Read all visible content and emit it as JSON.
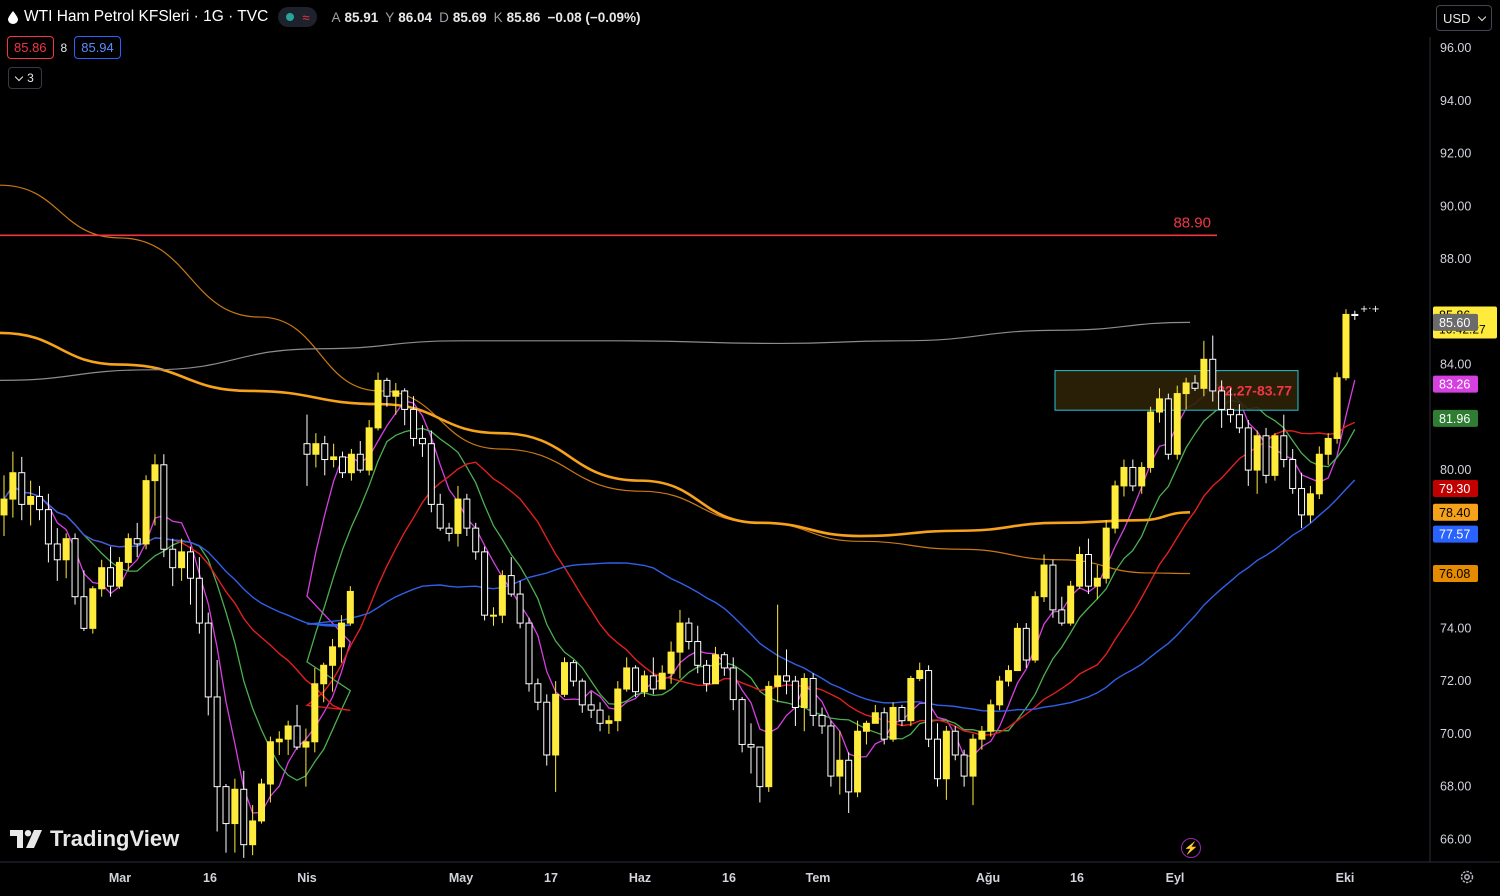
{
  "header": {
    "title": "WTI Ham Petrol KFSleri · 1G · TVC",
    "ohlc": [
      {
        "k": "A",
        "v": "85.91"
      },
      {
        "k": "Y",
        "v": "86.04"
      },
      {
        "k": "D",
        "v": "85.69"
      },
      {
        "k": "K",
        "v": "85.86"
      }
    ],
    "change": "−0.08 (−0.09%)",
    "bid": "85.86",
    "spread": "8",
    "ask": "85.94",
    "indicators_collapsed_count": "3"
  },
  "currency_selector": "USD",
  "branding": "TradingView",
  "colors": {
    "bull": "#ffeb3b",
    "bear": "#ffffff",
    "resistance": "#f23645",
    "ma_gray": "#8c8c8c",
    "ma_magenta": "#d63fe0",
    "ma_green": "#4caf50",
    "ma_red": "#e0201f",
    "ma_orange_thick": "#f7a21b",
    "ma_blue": "#3060e8",
    "ma_orange_thin": "#c87814",
    "zone_border": "#26c6da",
    "zone_fill": "#2e2208"
  },
  "chart_data": {
    "type": "candlestick",
    "yaxis": {
      "min": 65.2,
      "max": 96.5,
      "ticks": [
        "96.00",
        "94.00",
        "92.00",
        "90.00",
        "88.00",
        "84.00",
        "80.00",
        "74.00",
        "72.00",
        "70.00",
        "68.00",
        "66.00"
      ]
    },
    "xaxis_labels": [
      "Mar",
      "16",
      "Nis",
      "May",
      "17",
      "Haz",
      "16",
      "Tem",
      "Ağu",
      "16",
      "Eyl",
      "Eki"
    ],
    "resistance": {
      "value": 88.9,
      "label": "88.90"
    },
    "zone": {
      "low": 82.27,
      "high": 83.77,
      "label": "82.27-83.77"
    },
    "price_badges": [
      {
        "value": 85.86,
        "label": "85.86",
        "sub": "16:42:27",
        "color": "#ffeb3b",
        "text_color": "#000000"
      },
      {
        "value": 85.6,
        "label": "85.60",
        "color": "#6b6b6b",
        "text_color": "#ffffff"
      },
      {
        "value": 83.26,
        "label": "83.26",
        "color": "#d63fe0",
        "text_color": "#ffffff"
      },
      {
        "value": 81.96,
        "label": "81.96",
        "color": "#2e7d32",
        "text_color": "#ffffff"
      },
      {
        "value": 79.3,
        "label": "79.30",
        "color": "#c20000",
        "text_color": "#ffffff"
      },
      {
        "value": 78.4,
        "label": "78.40",
        "color": "#f7a21b",
        "text_color": "#000000"
      },
      {
        "value": 77.57,
        "label": "77.57",
        "color": "#2962ff",
        "text_color": "#ffffff"
      },
      {
        "value": 76.08,
        "label": "76.08",
        "color": "#e68a00",
        "text_color": "#000000"
      }
    ],
    "candles_ohlc": [
      [
        78.3,
        79.8,
        77.5,
        78.9
      ],
      [
        78.9,
        80.7,
        78.2,
        79.9
      ],
      [
        79.9,
        80.5,
        78.1,
        78.7
      ],
      [
        78.7,
        79.6,
        77.9,
        79.0
      ],
      [
        79.0,
        79.4,
        78.1,
        78.5
      ],
      [
        78.5,
        79.1,
        76.5,
        77.2
      ],
      [
        77.2,
        77.8,
        75.8,
        76.6
      ],
      [
        76.6,
        77.6,
        75.9,
        77.4
      ],
      [
        77.4,
        77.6,
        74.9,
        75.2
      ],
      [
        75.2,
        76.2,
        73.9,
        74.0
      ],
      [
        74.0,
        75.6,
        73.8,
        75.5
      ],
      [
        75.5,
        76.6,
        75.2,
        76.3
      ],
      [
        76.3,
        77.1,
        75.2,
        75.6
      ],
      [
        75.6,
        76.7,
        75.5,
        76.5
      ],
      [
        76.5,
        77.6,
        76.2,
        77.4
      ],
      [
        77.4,
        78.0,
        76.7,
        77.2
      ],
      [
        77.2,
        79.8,
        77.0,
        79.6
      ],
      [
        79.6,
        80.6,
        77.9,
        80.2
      ],
      [
        80.2,
        80.6,
        76.7,
        77.0
      ],
      [
        77.0,
        77.4,
        75.6,
        76.3
      ],
      [
        76.3,
        77.4,
        75.8,
        76.9
      ],
      [
        76.9,
        77.1,
        74.9,
        75.9
      ],
      [
        75.9,
        76.7,
        73.8,
        74.2
      ],
      [
        74.2,
        74.6,
        70.7,
        71.4
      ],
      [
        71.4,
        72.8,
        66.3,
        68.0
      ],
      [
        68.0,
        68.1,
        65.5,
        66.6
      ],
      [
        66.6,
        68.3,
        65.5,
        67.9
      ],
      [
        67.9,
        68.6,
        65.3,
        65.8
      ],
      [
        65.8,
        67.3,
        65.4,
        66.7
      ],
      [
        66.7,
        68.3,
        66.6,
        68.1
      ],
      [
        68.1,
        69.9,
        67.4,
        69.7
      ],
      [
        69.7,
        70.1,
        69.2,
        69.8
      ],
      [
        69.8,
        70.5,
        69.2,
        70.3
      ],
      [
        70.3,
        71.1,
        69.4,
        69.5
      ],
      [
        69.5,
        70.2,
        68.0,
        69.7
      ],
      [
        69.7,
        72.5,
        69.3,
        71.9
      ],
      [
        71.9,
        72.7,
        71.2,
        72.6
      ],
      [
        72.6,
        73.6,
        71.6,
        73.3
      ],
      [
        73.3,
        74.5,
        72.7,
        74.2
      ],
      [
        74.2,
        75.6,
        74.1,
        75.4
      ],
      [
        81.0,
        82.1,
        79.4,
        80.6
      ],
      [
        80.6,
        81.4,
        80.1,
        81.0
      ],
      [
        81.0,
        81.3,
        79.8,
        80.4
      ],
      [
        80.4,
        81.0,
        80.1,
        80.5
      ],
      [
        80.5,
        80.7,
        79.7,
        79.9
      ],
      [
        79.9,
        80.8,
        79.6,
        80.6
      ],
      [
        80.6,
        81.1,
        79.9,
        80.0
      ],
      [
        80.0,
        81.9,
        79.8,
        81.6
      ],
      [
        81.6,
        83.7,
        81.5,
        83.4
      ],
      [
        83.4,
        83.5,
        82.4,
        82.8
      ],
      [
        82.8,
        83.3,
        82.1,
        83.0
      ],
      [
        83.0,
        83.1,
        81.7,
        82.3
      ],
      [
        82.3,
        82.8,
        80.9,
        81.2
      ],
      [
        81.2,
        81.7,
        80.5,
        81.0
      ],
      [
        81.0,
        81.5,
        78.4,
        78.7
      ],
      [
        78.7,
        79.1,
        77.7,
        77.8
      ],
      [
        77.8,
        78.0,
        77.3,
        77.6
      ],
      [
        77.6,
        79.4,
        77.1,
        78.9
      ],
      [
        78.9,
        79.1,
        77.5,
        77.8
      ],
      [
        77.8,
        78.0,
        76.6,
        76.9
      ],
      [
        76.9,
        77.1,
        74.3,
        74.5
      ],
      [
        74.5,
        74.8,
        74.1,
        74.5
      ],
      [
        74.5,
        76.2,
        74.2,
        76.0
      ],
      [
        76.0,
        76.7,
        75.2,
        75.3
      ],
      [
        75.3,
        75.8,
        74.0,
        74.2
      ],
      [
        74.2,
        74.4,
        71.6,
        71.9
      ],
      [
        71.9,
        72.1,
        70.9,
        71.2
      ],
      [
        71.2,
        71.5,
        68.8,
        69.2
      ],
      [
        69.2,
        72.0,
        67.8,
        71.5
      ],
      [
        71.5,
        72.9,
        71.4,
        72.7
      ],
      [
        72.7,
        72.8,
        71.8,
        72.0
      ],
      [
        72.0,
        72.1,
        70.8,
        71.1
      ],
      [
        71.1,
        71.6,
        70.6,
        70.9
      ],
      [
        70.9,
        71.2,
        70.1,
        70.4
      ],
      [
        70.4,
        70.7,
        70.0,
        70.5
      ],
      [
        70.5,
        72.0,
        70.1,
        71.7
      ],
      [
        71.7,
        72.9,
        71.6,
        72.5
      ],
      [
        72.5,
        72.6,
        71.4,
        71.6
      ],
      [
        71.6,
        72.4,
        71.4,
        72.2
      ],
      [
        72.2,
        72.9,
        71.5,
        71.7
      ],
      [
        71.7,
        72.6,
        71.7,
        72.3
      ],
      [
        72.3,
        73.5,
        71.9,
        73.1
      ],
      [
        73.1,
        74.7,
        72.1,
        74.2
      ],
      [
        74.2,
        74.4,
        73.2,
        73.5
      ],
      [
        73.5,
        74.1,
        72.3,
        72.6
      ],
      [
        72.6,
        72.8,
        71.6,
        71.9
      ],
      [
        71.9,
        73.3,
        71.9,
        73.0
      ],
      [
        73.0,
        73.1,
        72.2,
        72.5
      ],
      [
        72.5,
        72.9,
        70.9,
        71.3
      ],
      [
        71.3,
        71.4,
        69.3,
        69.6
      ],
      [
        69.6,
        70.4,
        68.5,
        69.5
      ],
      [
        69.5,
        69.5,
        67.4,
        68.0
      ],
      [
        68.0,
        72.0,
        67.8,
        71.8
      ],
      [
        71.8,
        74.9,
        71.2,
        72.2
      ],
      [
        72.2,
        73.2,
        71.5,
        72.0
      ],
      [
        72.0,
        72.2,
        70.3,
        71.0
      ],
      [
        71.0,
        72.3,
        70.1,
        72.1
      ],
      [
        72.1,
        72.3,
        70.3,
        70.7
      ],
      [
        70.7,
        71.0,
        70.0,
        70.3
      ],
      [
        70.3,
        70.5,
        68.0,
        68.4
      ],
      [
        68.4,
        70.1,
        67.7,
        69.0
      ],
      [
        69.0,
        69.3,
        67.0,
        67.8
      ],
      [
        67.8,
        70.5,
        67.6,
        70.1
      ],
      [
        70.1,
        70.5,
        69.6,
        70.4
      ],
      [
        70.4,
        71.1,
        70.4,
        70.8
      ],
      [
        70.8,
        71.0,
        69.6,
        69.8
      ],
      [
        69.8,
        71.2,
        69.7,
        71.0
      ],
      [
        71.0,
        71.1,
        70.3,
        70.5
      ],
      [
        70.5,
        72.2,
        70.3,
        72.1
      ],
      [
        72.1,
        72.7,
        72.0,
        72.4
      ],
      [
        72.4,
        72.6,
        69.5,
        69.8
      ],
      [
        69.8,
        70.4,
        68.0,
        68.3
      ],
      [
        68.3,
        70.3,
        67.5,
        70.1
      ],
      [
        70.1,
        70.3,
        69.0,
        69.2
      ],
      [
        69.2,
        69.4,
        68.0,
        68.4
      ],
      [
        68.4,
        70.0,
        67.3,
        69.8
      ],
      [
        69.8,
        70.3,
        69.4,
        70.1
      ],
      [
        70.1,
        71.3,
        69.9,
        71.1
      ],
      [
        71.1,
        72.2,
        70.9,
        72.0
      ],
      [
        72.0,
        72.6,
        71.8,
        72.4
      ],
      [
        72.4,
        74.2,
        72.4,
        74.0
      ],
      [
        74.0,
        74.2,
        72.5,
        72.8
      ],
      [
        72.8,
        75.4,
        72.7,
        75.2
      ],
      [
        75.2,
        76.8,
        75.0,
        76.4
      ],
      [
        76.4,
        76.6,
        74.4,
        74.7
      ],
      [
        74.7,
        75.2,
        74.1,
        74.2
      ],
      [
        74.2,
        75.8,
        74.1,
        75.6
      ],
      [
        75.6,
        77.1,
        75.5,
        76.8
      ],
      [
        76.8,
        77.4,
        75.3,
        75.6
      ],
      [
        75.6,
        76.4,
        75.1,
        75.9
      ],
      [
        75.9,
        78.1,
        75.7,
        77.8
      ],
      [
        77.8,
        79.6,
        77.6,
        79.4
      ],
      [
        79.4,
        80.4,
        79.0,
        80.1
      ],
      [
        80.1,
        80.4,
        79.2,
        79.4
      ],
      [
        79.4,
        80.3,
        79.1,
        80.1
      ],
      [
        80.1,
        82.4,
        79.9,
        82.2
      ],
      [
        82.2,
        83.1,
        81.8,
        82.7
      ],
      [
        82.7,
        82.9,
        80.4,
        80.6
      ],
      [
        80.6,
        83.2,
        80.4,
        82.9
      ],
      [
        82.9,
        83.5,
        82.3,
        83.3
      ],
      [
        83.3,
        83.6,
        83.0,
        83.1
      ],
      [
        83.1,
        84.9,
        82.8,
        84.2
      ],
      [
        84.2,
        85.1,
        82.6,
        83.0
      ],
      [
        83.0,
        83.4,
        81.6,
        82.3
      ],
      [
        82.3,
        83.1,
        81.8,
        82.1
      ],
      [
        82.1,
        82.5,
        81.4,
        81.6
      ],
      [
        81.6,
        81.9,
        79.4,
        80.0
      ],
      [
        80.0,
        81.5,
        79.1,
        81.3
      ],
      [
        81.3,
        81.6,
        79.5,
        79.8
      ],
      [
        79.8,
        81.4,
        79.6,
        81.3
      ],
      [
        81.3,
        82.1,
        80.1,
        80.4
      ],
      [
        80.4,
        80.8,
        79.1,
        79.3
      ],
      [
        79.3,
        79.9,
        77.8,
        78.3
      ],
      [
        78.3,
        79.4,
        78.0,
        79.1
      ],
      [
        79.1,
        80.9,
        78.9,
        80.6
      ],
      [
        80.6,
        81.4,
        80.2,
        81.2
      ],
      [
        81.2,
        83.7,
        81.0,
        83.5
      ],
      [
        83.5,
        86.1,
        83.4,
        85.9
      ],
      [
        85.9,
        86.04,
        85.69,
        85.86
      ]
    ]
  }
}
